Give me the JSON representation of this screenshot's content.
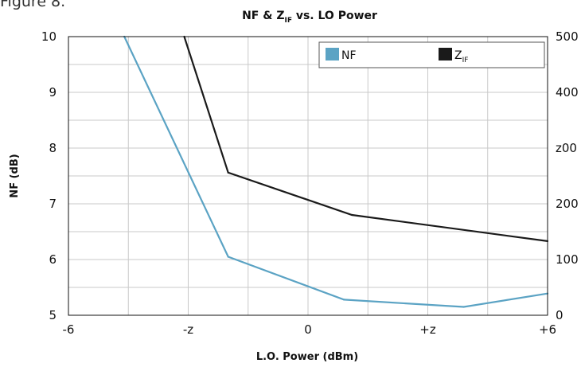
{
  "figure_label": "Figure 8.",
  "chart_data": {
    "type": "line",
    "title": {
      "main": "NF & Z",
      "sub": "IF",
      "rest": " vs. LO Power"
    },
    "xlabel": "L.O. Power (dBm)",
    "ylabel": "NF (dB)",
    "x_ticks": [
      -6,
      -3,
      0,
      3,
      6
    ],
    "x_tick_labels": [
      "-6",
      "-z",
      "0",
      "+z",
      "+6"
    ],
    "xlim": [
      -6,
      6
    ],
    "ylim": [
      5,
      10
    ],
    "y_ticks": [
      5,
      6,
      7,
      8,
      9,
      10
    ],
    "y_tick_labels": [
      "5",
      "6",
      "7",
      "8",
      "9",
      "10"
    ],
    "y2lim": [
      0,
      500
    ],
    "y2_ticks": [
      0,
      100,
      200,
      300,
      400,
      500
    ],
    "y2_tick_labels": [
      "0",
      "100",
      "200",
      "z00",
      "400",
      "500"
    ],
    "grid": true,
    "legend_position": "top-right",
    "series": [
      {
        "name": "NF",
        "legend_main": "NF",
        "legend_sub": "",
        "axis": "left",
        "color": "#5ba3c4",
        "x": [
          -4.6,
          -2,
          0.9,
          3.9,
          6
        ],
        "y": [
          10,
          6.05,
          5.28,
          5.15,
          5.39
        ]
      },
      {
        "name": "ZIF",
        "legend_main": "Z",
        "legend_sub": "IF",
        "axis": "right",
        "color": "#1a1a1a",
        "x": [
          -3.1,
          -2,
          1.1,
          6
        ],
        "y": [
          500,
          256,
          180,
          133
        ]
      }
    ]
  }
}
